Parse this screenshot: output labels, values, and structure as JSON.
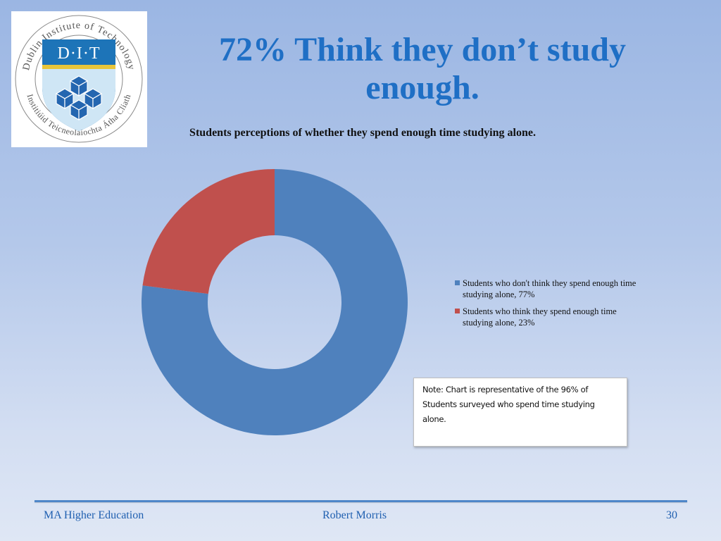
{
  "slide": {
    "title": "72% Think they don’t study enough."
  },
  "logo": {
    "monogram": "D·I·T",
    "ring_text_top": "Dublin Institute of Technology",
    "ring_text_bottom": "Institiúid Teicneolaíochta Átha Cliath",
    "colors": {
      "shield_blue": "#1d74b8",
      "band_gold": "#e8c53a",
      "emblem_blue": "#2466b0"
    }
  },
  "chart_data": {
    "type": "pie",
    "style": "donut",
    "title": "Students perceptions of whether they spend enough time studying alone.",
    "series": [
      {
        "label": "Students who don't think they spend enough time studying alone, 77%",
        "value": 77,
        "color": "#4f81bd"
      },
      {
        "label": "Students who think they spend enough time studying alone, 23%",
        "value": 23,
        "color": "#c0504d"
      }
    ],
    "legend_position": "right"
  },
  "note": {
    "text": "Note: Chart is representative of the 96% of Students surveyed who spend time studying alone."
  },
  "footer": {
    "left": "MA  Higher Education",
    "center": "Robert Morris",
    "page": "30"
  }
}
